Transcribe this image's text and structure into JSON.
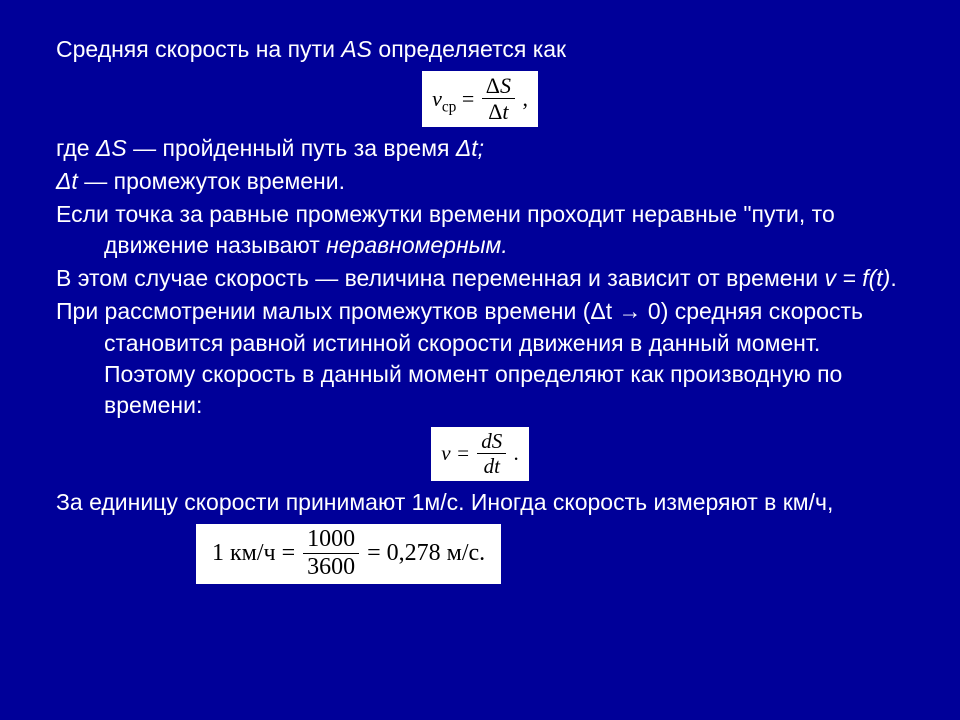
{
  "background_color": "#000099",
  "text_color": "#ffffff",
  "formula_bg": "#ffffff",
  "formula_fg": "#000000",
  "font_size_pt": 17,
  "lines": {
    "l1_a": "Средняя скорость на пути ",
    "l1_b": "AS ",
    "l1_c": "определяется как",
    "l2_a": "где ",
    "l2_b": "ΔS",
    "l2_c": " — пройденный путь за время ",
    "l2_d": "Δt;",
    "l3_a": "Δt",
    "l3_b": " — промежуток времени.",
    "l4": "Если точка за равные промежутки времени проходит неравные \"пути, то движение называют ",
    "l4_i": "неравномерным.",
    "l5": "В этом случае скорость — величина переменная и зависит от времени ",
    "l5_i": "v = f(t)",
    "l5_end": ".",
    "l6": "При рассмотрении малых промежутков времени (Δt → 0) средняя скорость становится равной истинной скорости движения в данный момент. Поэтому скорость в данный момент определяют как производную по времени:",
    "l7": "За единицу скорости принимают 1м/с. Иногда скорость измеряют в км/ч,"
  },
  "formulas": {
    "f1_left": "v",
    "f1_sub": "ср",
    "f1_eq": " = ",
    "f1_num": "Δ",
    "f1_numS": "S",
    "f1_den": "Δ",
    "f1_dent": "t",
    "f1_tail": ",",
    "f2_left": "v = ",
    "f2_num_d": "d",
    "f2_num_S": "S",
    "f2_den_d": "d",
    "f2_den_t": "t",
    "f2_tail": ".",
    "f3_left": "1 км/ч = ",
    "f3_num": "1000",
    "f3_den": "3600",
    "f3_mid": " = 0,278 м/с."
  }
}
